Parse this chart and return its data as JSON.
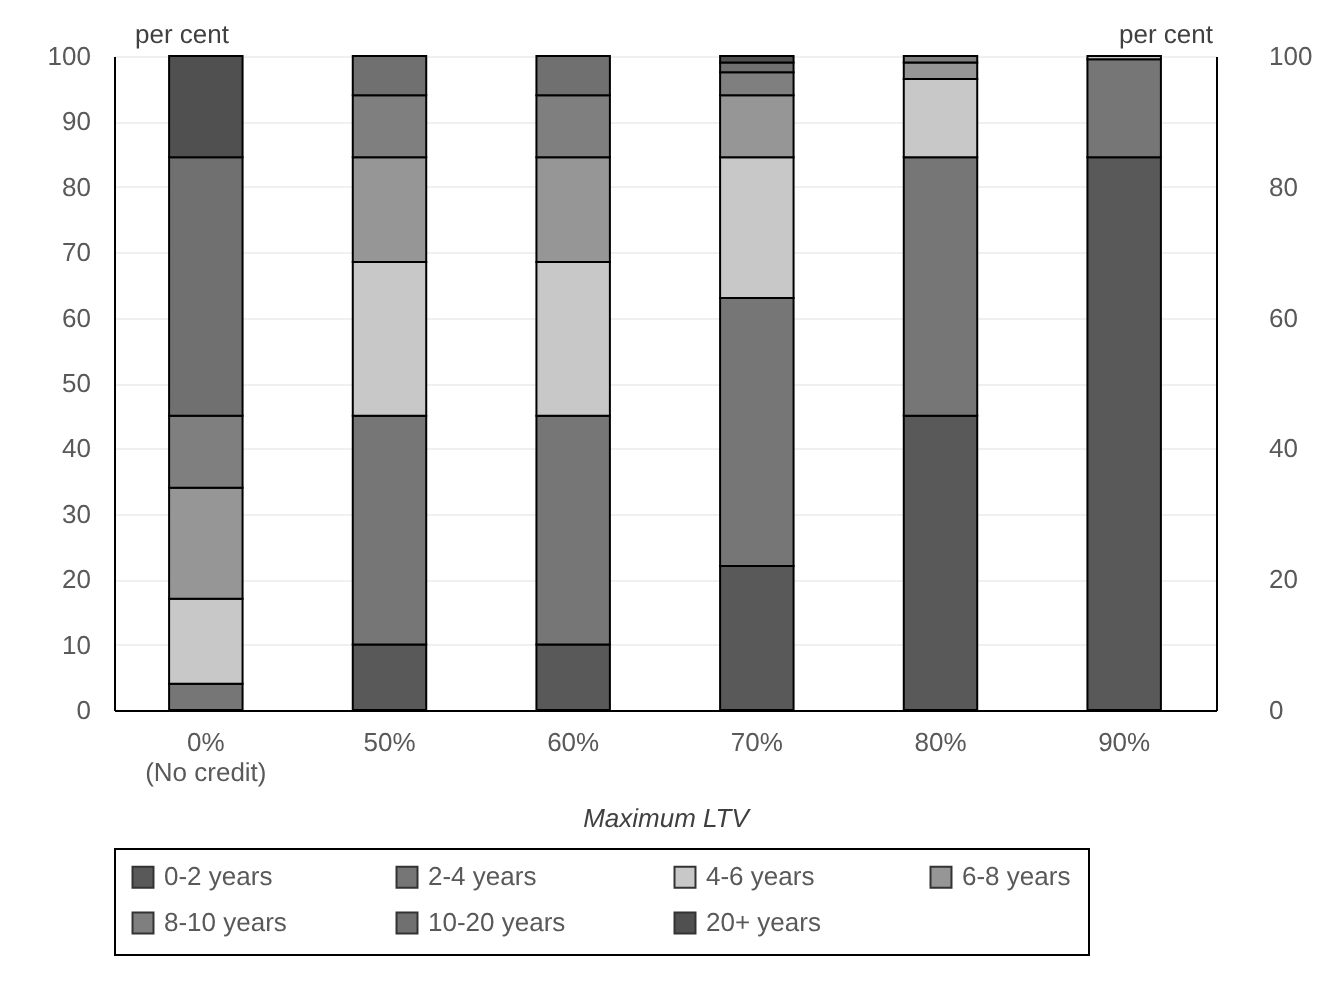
{
  "chart_data": {
    "type": "bar",
    "stacked": true,
    "categories": [
      "0%\n(No credit)",
      "50%",
      "60%",
      "70%",
      "80%",
      "90%"
    ],
    "series": [
      {
        "name": "0-2 years",
        "color": "#595959",
        "values": [
          0,
          10,
          10,
          22,
          45,
          84.5
        ]
      },
      {
        "name": "2-4 years",
        "color": "#767676",
        "values": [
          4,
          35,
          35,
          41,
          39.5,
          15
        ]
      },
      {
        "name": "4-6 years",
        "color": "#c8c8c8",
        "values": [
          13,
          23.5,
          23.5,
          21.5,
          12,
          0.5
        ]
      },
      {
        "name": "6-8 years",
        "color": "#969696",
        "values": [
          17,
          16,
          16,
          9.5,
          2.5,
          0
        ]
      },
      {
        "name": "8-10 years",
        "color": "#7f7f7f",
        "values": [
          11,
          9.5,
          9.5,
          3.5,
          1,
          0
        ]
      },
      {
        "name": "10-20 years",
        "color": "#707070",
        "values": [
          39.5,
          6,
          6,
          1.5,
          0,
          0
        ]
      },
      {
        "name": "20+ years",
        "color": "#505050",
        "values": [
          15.5,
          0,
          0,
          1,
          0,
          0
        ]
      }
    ],
    "xlabel": "Maximum LTV",
    "ylabel": "per cent",
    "y2label": "per cent",
    "ylim": [
      0,
      100
    ],
    "yticks": [
      0,
      10,
      20,
      30,
      40,
      50,
      60,
      70,
      80,
      90,
      100
    ],
    "y2lim": [
      0,
      100
    ],
    "y2ticks": [
      0,
      20,
      40,
      60,
      80,
      100
    ],
    "grid": "y",
    "legend": "bottom"
  }
}
